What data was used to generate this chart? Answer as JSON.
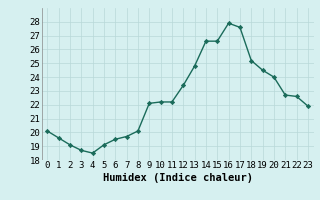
{
  "x": [
    0,
    1,
    2,
    3,
    4,
    5,
    6,
    7,
    8,
    9,
    10,
    11,
    12,
    13,
    14,
    15,
    16,
    17,
    18,
    19,
    20,
    21,
    22,
    23
  ],
  "y": [
    20.1,
    19.6,
    19.1,
    18.7,
    18.5,
    19.1,
    19.5,
    19.7,
    20.1,
    22.1,
    22.2,
    22.2,
    23.4,
    24.8,
    26.6,
    26.6,
    27.9,
    27.6,
    25.2,
    24.5,
    24.0,
    22.7,
    22.6,
    21.9
  ],
  "line_color": "#1a6b5a",
  "marker": "D",
  "marker_size": 2.2,
  "bg_color": "#d6f0f0",
  "grid_color": "#b8d8d8",
  "xlabel": "Humidex (Indice chaleur)",
  "ylim": [
    18,
    29
  ],
  "xlim": [
    -0.5,
    23.5
  ],
  "yticks": [
    18,
    19,
    20,
    21,
    22,
    23,
    24,
    25,
    26,
    27,
    28
  ],
  "xticks": [
    0,
    1,
    2,
    3,
    4,
    5,
    6,
    7,
    8,
    9,
    10,
    11,
    12,
    13,
    14,
    15,
    16,
    17,
    18,
    19,
    20,
    21,
    22,
    23
  ],
  "line_width": 1.0,
  "xlabel_fontsize": 7.5,
  "tick_fontsize": 6.5
}
